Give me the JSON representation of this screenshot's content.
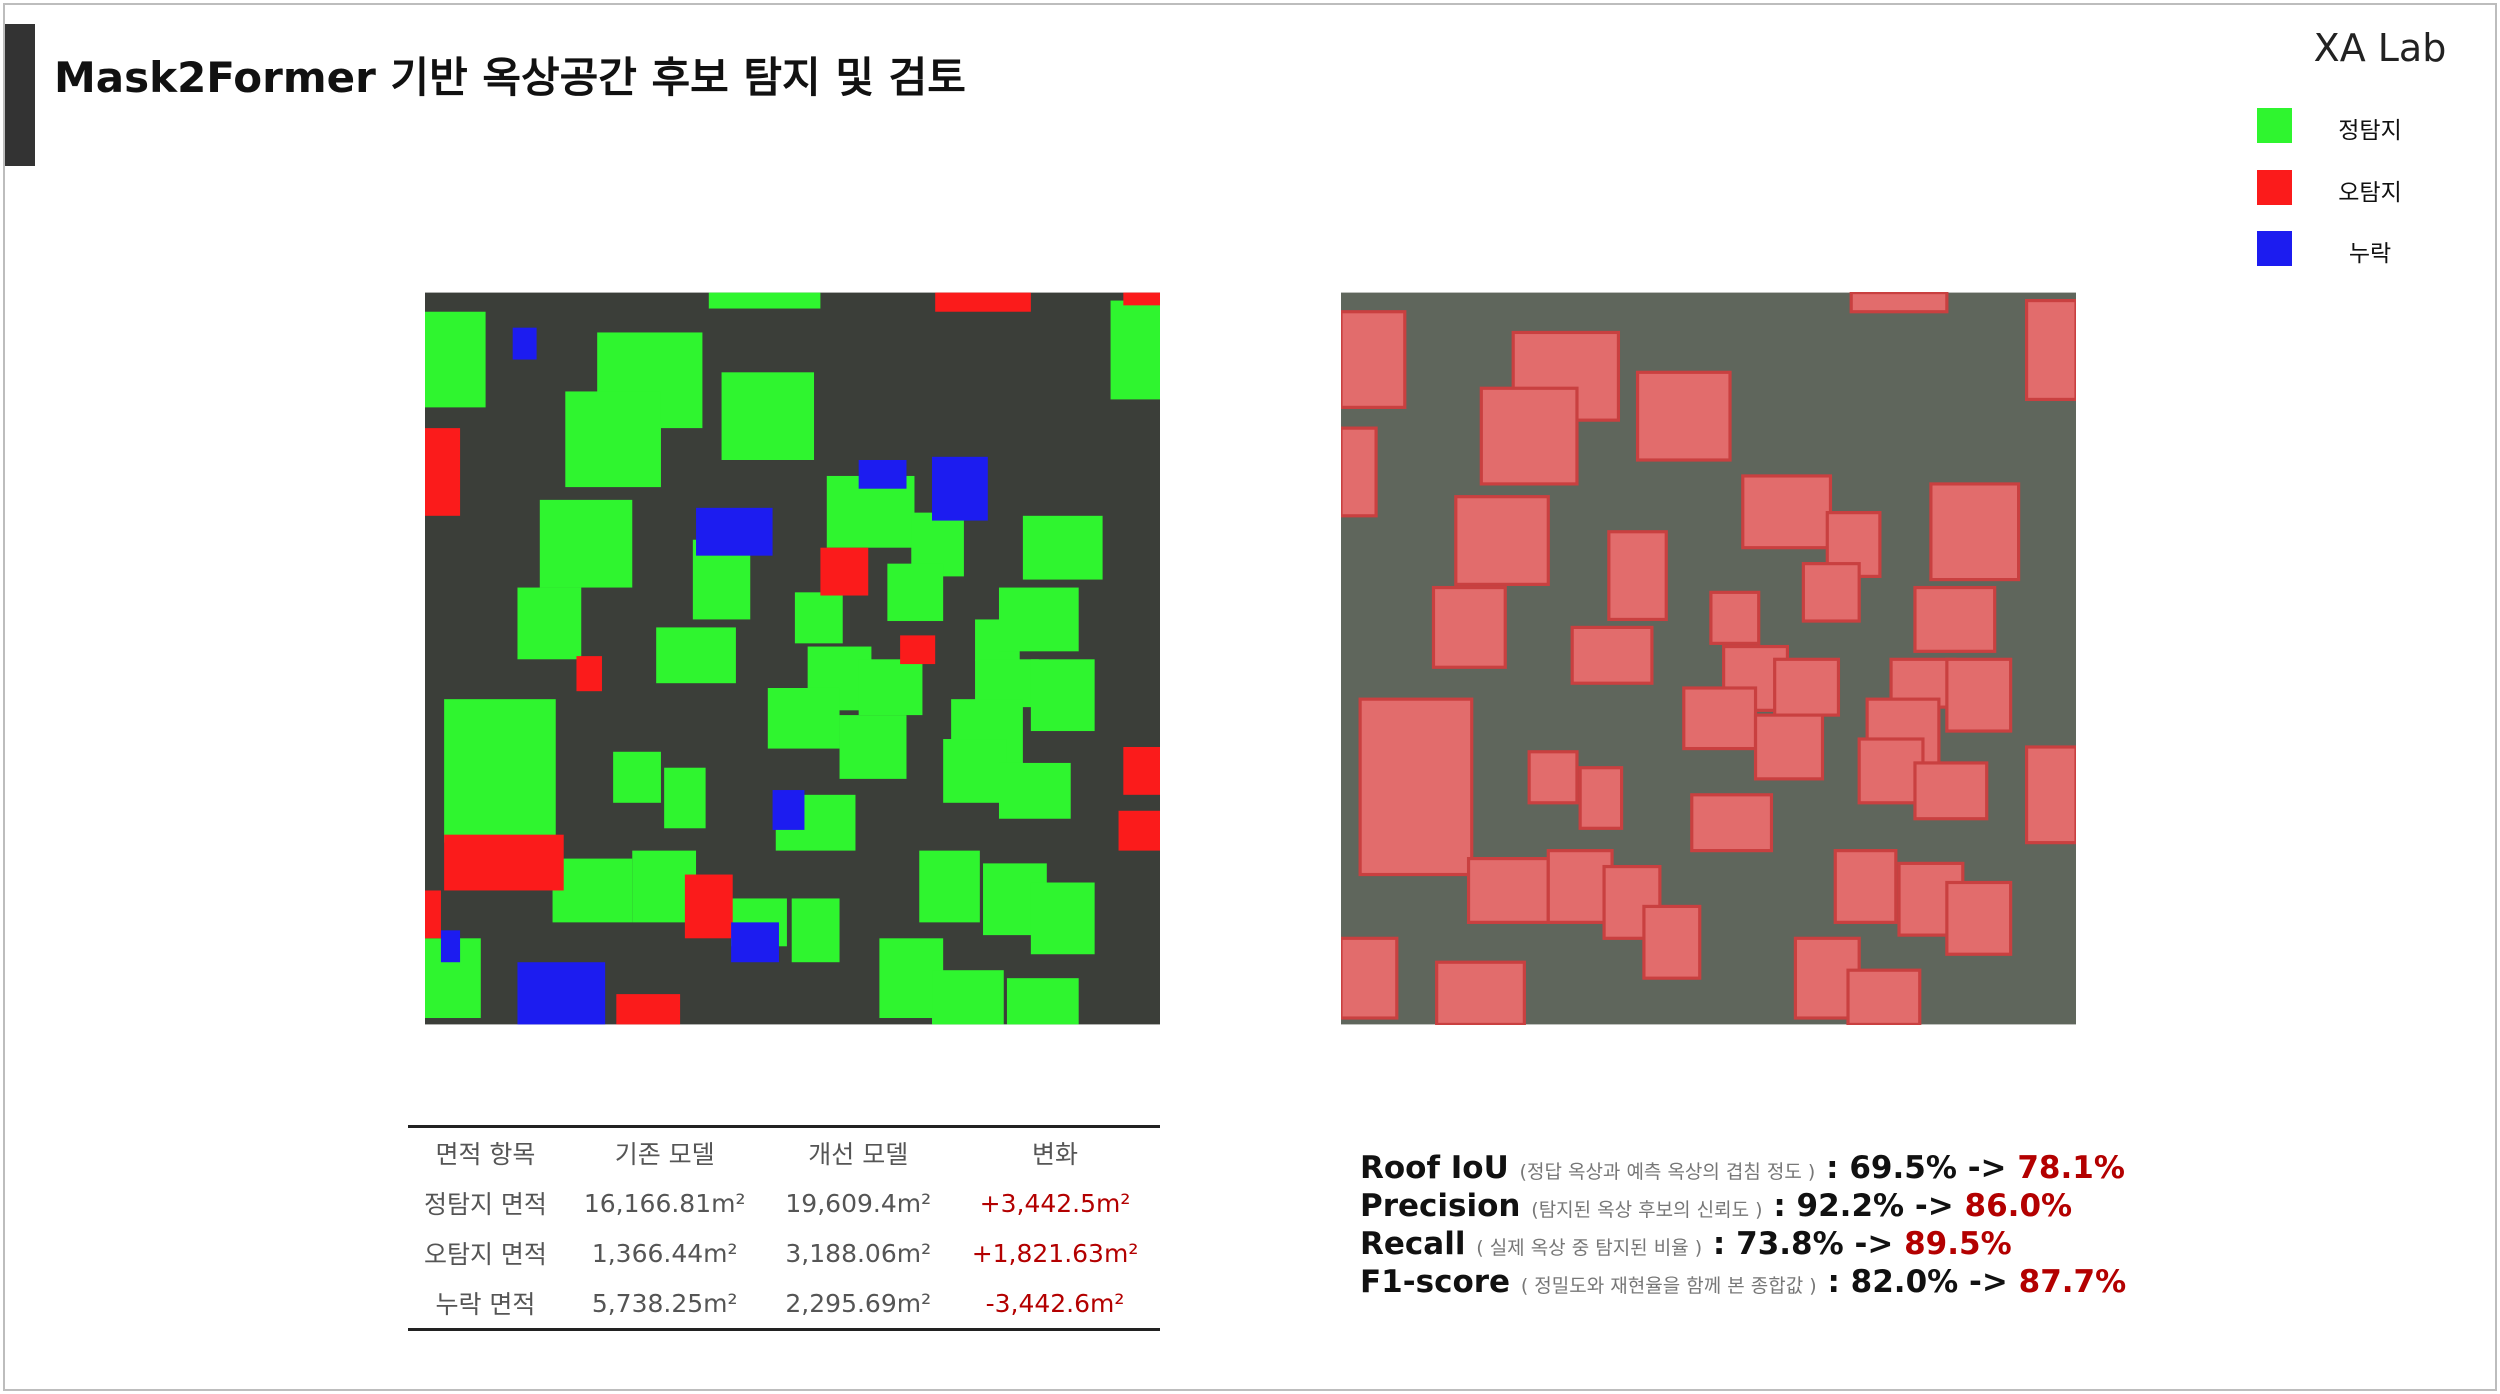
{
  "header": {
    "title": "Mask2Former 기반 옥상공간 후보 탐지 및 검토",
    "logo": "XA Lab"
  },
  "legend": [
    {
      "label": "정탐지",
      "color": "#2ff52f"
    },
    {
      "label": "오탐지",
      "color": "#fb1b1b"
    },
    {
      "label": "누락",
      "color": "#1c1cf0"
    }
  ],
  "table": {
    "columns": [
      "면적 항목",
      "기존 모델",
      "개선 모델",
      "변화"
    ],
    "rows": [
      [
        "정탐지 면적",
        "16,166.81m²",
        "19,609.4m²",
        "+3,442.5m²"
      ],
      [
        "오탐지 면적",
        "1,366.44m²",
        "3,188.06m²",
        "+1,821.63m²"
      ],
      [
        "누락 면적",
        "5,738.25m²",
        "2,295.69m²",
        "-3,442.6m²"
      ]
    ]
  },
  "metrics": {
    "separator": ":",
    "arrow": "->",
    "items": [
      {
        "name": "Roof IoU",
        "note": "(정답 옥상과 예측 옥상의 겹침 정도 )",
        "before": "69.5%",
        "after": "78.1%"
      },
      {
        "name": "Precision",
        "note": "(탐지된 옥상 후보의 신뢰도 )",
        "before": "92.2%",
        "after": "86.0%"
      },
      {
        "name": "Recall",
        "note": "( 실제 옥상 중 탐지된 비율 )",
        "before": "73.8%",
        "after": "89.5%"
      },
      {
        "name": "F1-score",
        "note": "( 정밀도와 재현율을 함께 본 종합값 )",
        "before": "82.0%",
        "after": "87.7%"
      }
    ]
  }
}
